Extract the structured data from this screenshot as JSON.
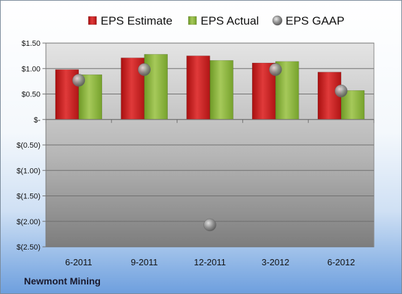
{
  "chart_data": {
    "type": "bar",
    "categories": [
      "6-2011",
      "9-2011",
      "12-2011",
      "3-2012",
      "6-2012"
    ],
    "series": [
      {
        "name": "EPS Estimate",
        "kind": "bar",
        "values": [
          0.98,
          1.21,
          1.25,
          1.11,
          0.93
        ],
        "color": "#cc1f1f"
      },
      {
        "name": "EPS Actual",
        "kind": "bar",
        "values": [
          0.88,
          1.28,
          1.16,
          1.14,
          0.57
        ],
        "color": "#8cb33a"
      },
      {
        "name": "EPS GAAP",
        "kind": "marker",
        "values": [
          0.77,
          0.98,
          -2.07,
          0.98,
          0.56
        ],
        "color": "#9a9a9a"
      }
    ],
    "ylim": [
      -2.5,
      1.5
    ],
    "yticks": [
      1.5,
      1.0,
      0.5,
      0,
      -0.5,
      -1.0,
      -1.5,
      -2.0,
      -2.5
    ],
    "ytick_labels": [
      "$1.50",
      "$1.00",
      "$0.50",
      "$-",
      "$(0.50)",
      "$(1.00)",
      "$(1.50)",
      "$(2.00)",
      "$(2.50)"
    ],
    "legend_position": "top",
    "grid": true
  },
  "footer": {
    "company": "Newmont Mining"
  }
}
